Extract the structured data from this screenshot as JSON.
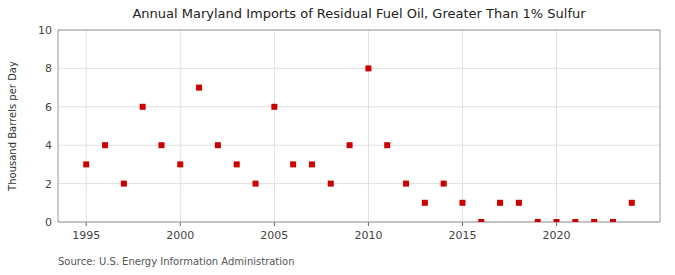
{
  "chart_data": {
    "type": "scatter",
    "title": "Annual Maryland Imports of Residual Fuel Oil, Greater Than 1% Sulfur",
    "ylabel": "Thousand Barrels per Day",
    "annotation": "Source: U.S. Energy Information Administration",
    "x": [
      1995,
      1996,
      1997,
      1998,
      1999,
      2000,
      2001,
      2002,
      2003,
      2004,
      2005,
      2006,
      2007,
      2008,
      2009,
      2010,
      2011,
      2012,
      2013,
      2014,
      2015,
      2016,
      2017,
      2018,
      2019,
      2020,
      2021,
      2022,
      2023,
      2024
    ],
    "values": [
      3,
      4,
      2,
      6,
      4,
      3,
      7,
      4,
      3,
      2,
      6,
      3,
      3,
      2,
      4,
      8,
      4,
      2,
      1,
      2,
      1,
      0,
      1,
      1,
      0,
      0,
      0,
      0,
      0,
      1
    ],
    "color": "#cc0000",
    "marker": "square",
    "xlim": [
      1993.5,
      2025.5
    ],
    "xticks": [
      1995,
      2000,
      2005,
      2010,
      2015,
      2020
    ],
    "ylim": [
      0,
      10
    ],
    "yticks": [
      0,
      2,
      4,
      6,
      8,
      10
    ],
    "grid": true
  }
}
